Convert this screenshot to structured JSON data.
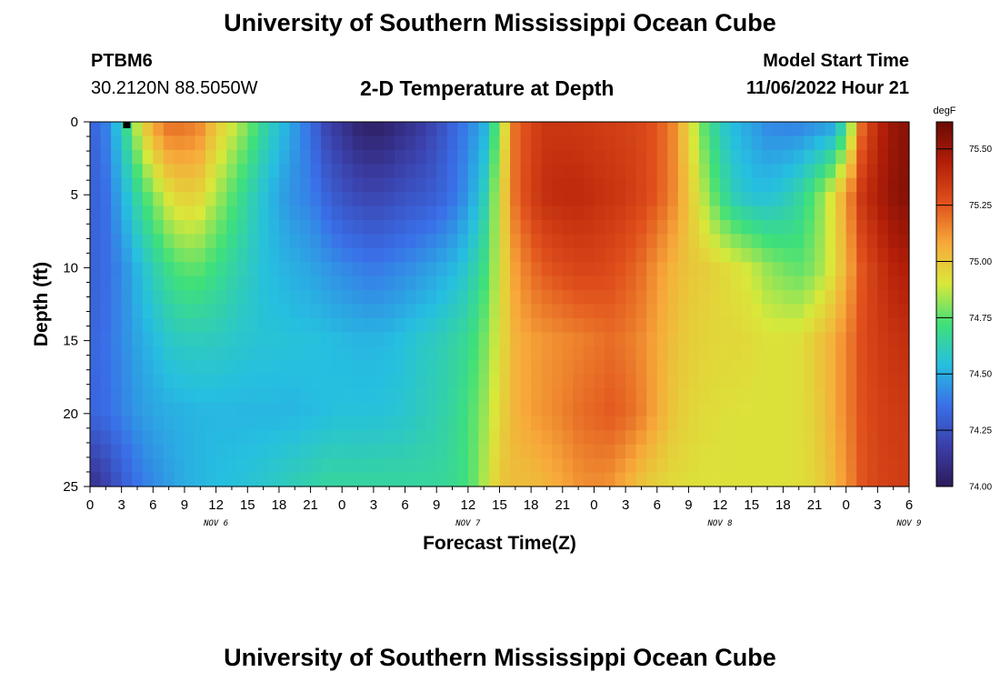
{
  "page": {
    "title_top": "University of Southern Mississippi Ocean Cube",
    "title_bottom": "University of Southern Mississippi Ocean Cube",
    "station_id": "PTBM6",
    "station_coords": "30.2120N  88.5050W",
    "model_start_label": "Model Start Time",
    "model_start_value": "11/06/2022 Hour 21"
  },
  "chart_data": {
    "type": "heatmap",
    "title": "2-D Temperature at Depth",
    "xlabel": "Forecast Time(Z)",
    "ylabel": "Depth (ft)",
    "x_ticks": [
      "0",
      "3",
      "6",
      "9",
      "12",
      "15",
      "18",
      "21",
      "0",
      "3",
      "6",
      "9",
      "12",
      "15",
      "18",
      "21",
      "0",
      "3",
      "6",
      "9",
      "12",
      "15",
      "18",
      "21",
      "0",
      "3",
      "6"
    ],
    "x_range_hours": [
      0,
      78
    ],
    "date_labels": [
      {
        "label": "NOV 6",
        "hour": 12
      },
      {
        "label": "NOV 7",
        "hour": 36
      },
      {
        "label": "NOV 8",
        "hour": 60
      },
      {
        "label": "NOV 9",
        "hour": 78
      }
    ],
    "y_ticks": [
      0,
      5,
      10,
      15,
      20,
      25
    ],
    "ylim": [
      0,
      25
    ],
    "y_inverted": true,
    "colorbar": {
      "unit": "degF",
      "range": [
        74.0,
        75.62
      ],
      "ticks": [
        "74.00",
        "74.25",
        "74.50",
        "74.75",
        "75.00",
        "75.25",
        "75.50"
      ],
      "colors": [
        "#2d1a5a",
        "#3b3fa8",
        "#3a6fe8",
        "#26bfe0",
        "#3fe07a",
        "#d9e83a",
        "#f7a93a",
        "#e0501c",
        "#b21e08",
        "#6a0a05"
      ]
    },
    "current_time_marker_hour": 3.5,
    "nodes_hours": [
      0,
      1.5,
      3,
      4.5,
      6,
      7.5,
      9,
      10.5,
      12,
      13.5,
      15,
      16.5,
      18,
      19.5,
      21,
      22.5,
      24,
      25.5,
      27,
      28.5,
      30,
      31.5,
      33,
      34.5,
      36,
      37.5,
      39,
      40.5,
      42,
      43.5,
      45,
      46.5,
      48,
      49.5,
      51,
      52.5,
      54,
      55.5,
      57,
      58.5,
      60,
      61.5,
      63,
      64.5,
      66,
      67.5,
      69,
      70.5,
      72,
      73.5,
      75,
      76.5,
      78
    ],
    "nodes_depth": [
      0,
      5,
      10,
      15,
      20,
      25
    ],
    "values_degF": [
      [
        74.3,
        74.4,
        74.6,
        74.88,
        75.1,
        75.2,
        75.2,
        75.15,
        75.0,
        74.9,
        74.8,
        74.66,
        74.56,
        74.46,
        74.35,
        74.2,
        74.12,
        74.05,
        74.02,
        74.05,
        74.1,
        74.15,
        74.22,
        74.32,
        74.4,
        74.5,
        74.8,
        75.2,
        75.3,
        75.35,
        75.35,
        75.34,
        75.33,
        75.32,
        75.31,
        75.29,
        75.25,
        75.15,
        74.95,
        74.75,
        74.6,
        74.52,
        74.47,
        74.42,
        74.4,
        74.4,
        74.42,
        74.45,
        74.65,
        75.2,
        75.4,
        75.5,
        75.55
      ],
      [
        74.3,
        74.36,
        74.5,
        74.66,
        74.8,
        74.92,
        74.98,
        74.95,
        74.85,
        74.75,
        74.65,
        74.56,
        74.48,
        74.43,
        74.4,
        74.32,
        74.25,
        74.22,
        74.2,
        74.22,
        74.25,
        74.27,
        74.3,
        74.36,
        74.45,
        74.6,
        74.9,
        75.2,
        75.32,
        75.38,
        75.4,
        75.4,
        75.38,
        75.36,
        75.34,
        75.3,
        75.25,
        75.15,
        75.0,
        74.85,
        74.7,
        74.6,
        74.55,
        74.55,
        74.58,
        74.65,
        74.75,
        74.9,
        75.1,
        75.35,
        75.45,
        75.52,
        75.56
      ],
      [
        74.3,
        74.35,
        74.42,
        74.52,
        74.62,
        74.7,
        74.76,
        74.75,
        74.7,
        74.65,
        74.6,
        74.55,
        74.52,
        74.5,
        74.48,
        74.45,
        74.42,
        74.4,
        74.38,
        74.4,
        74.42,
        74.45,
        74.48,
        74.52,
        74.58,
        74.7,
        74.9,
        75.1,
        75.2,
        75.25,
        75.28,
        75.3,
        75.3,
        75.28,
        75.25,
        75.2,
        75.12,
        75.05,
        75.0,
        74.98,
        74.95,
        74.92,
        74.88,
        74.82,
        74.78,
        74.76,
        74.8,
        74.9,
        75.05,
        75.25,
        75.35,
        75.42,
        75.45
      ],
      [
        74.32,
        74.36,
        74.42,
        74.48,
        74.53,
        74.58,
        74.6,
        74.6,
        74.6,
        74.58,
        74.57,
        74.56,
        74.56,
        74.55,
        74.55,
        74.54,
        74.53,
        74.52,
        74.52,
        74.53,
        74.55,
        74.58,
        74.6,
        74.64,
        74.68,
        74.78,
        74.92,
        75.05,
        75.1,
        75.12,
        75.14,
        75.16,
        75.18,
        75.2,
        75.18,
        75.14,
        75.08,
        75.02,
        74.98,
        74.96,
        74.95,
        74.95,
        74.94,
        74.92,
        74.92,
        74.93,
        74.98,
        75.05,
        75.15,
        75.27,
        75.33,
        75.36,
        75.38
      ],
      [
        74.32,
        74.35,
        74.4,
        74.45,
        74.48,
        74.5,
        74.51,
        74.52,
        74.52,
        74.52,
        74.52,
        74.52,
        74.52,
        74.52,
        74.53,
        74.54,
        74.55,
        74.55,
        74.55,
        74.56,
        74.57,
        74.6,
        74.62,
        74.66,
        74.72,
        74.82,
        74.95,
        75.05,
        75.1,
        75.13,
        75.16,
        75.2,
        75.22,
        75.24,
        75.22,
        75.16,
        75.08,
        75.0,
        74.96,
        74.94,
        74.93,
        74.92,
        74.92,
        74.92,
        74.92,
        74.93,
        74.97,
        75.05,
        75.15,
        75.26,
        75.31,
        75.33,
        75.34
      ],
      [
        74.1,
        74.18,
        74.28,
        74.36,
        74.42,
        74.46,
        74.5,
        74.52,
        74.54,
        74.55,
        74.56,
        74.58,
        74.6,
        74.62,
        74.64,
        74.66,
        74.66,
        74.66,
        74.66,
        74.66,
        74.66,
        74.66,
        74.66,
        74.68,
        74.72,
        74.85,
        75.0,
        75.02,
        75.02,
        75.05,
        75.08,
        75.12,
        75.14,
        75.12,
        75.06,
        75.0,
        74.96,
        74.94,
        74.93,
        74.92,
        74.92,
        74.92,
        74.92,
        74.92,
        74.92,
        74.93,
        74.95,
        75.02,
        75.12,
        75.25,
        75.3,
        75.32,
        75.33
      ]
    ]
  }
}
